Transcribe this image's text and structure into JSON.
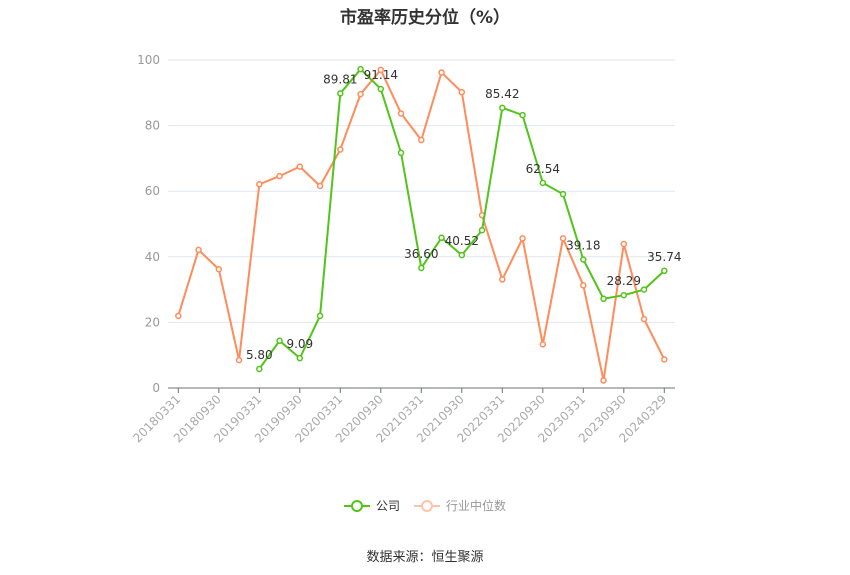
{
  "title": "市盈率历史分位（%）",
  "legend": [
    {
      "label": "公司",
      "color": "#52c41a"
    },
    {
      "label": "行业中位数",
      "color": "#ff8c5a"
    }
  ],
  "source": "数据来源：恒生聚源",
  "chart_data": {
    "type": "line",
    "title": "市盈率历史分位（%）",
    "xlabel": "",
    "ylabel": "",
    "ylim": [
      0,
      100
    ],
    "yticks": [
      0,
      20,
      40,
      60,
      80,
      100
    ],
    "grid": true,
    "legend_position": "bottom",
    "x_tick_labels": [
      "20180331",
      "20180930",
      "20190331",
      "20190930",
      "20200331",
      "20200930",
      "20210331",
      "20210930",
      "20220331",
      "20220930",
      "20230331",
      "20230930",
      "20240329"
    ],
    "categories": [
      "20180331",
      "20180630",
      "20180930",
      "20181231",
      "20190331",
      "20190630",
      "20190930",
      "20191231",
      "20200331",
      "20200630",
      "20200930",
      "20201231",
      "20210331",
      "20210630",
      "20210930",
      "20211231",
      "20220331",
      "20220630",
      "20220930",
      "20221231",
      "20230331",
      "20230630",
      "20230930",
      "20231231",
      "20240329"
    ],
    "series": [
      {
        "name": "公司",
        "color": "#52c41a",
        "values": [
          null,
          null,
          null,
          null,
          5.8,
          14.4,
          9.09,
          22.0,
          89.81,
          97.2,
          91.14,
          71.7,
          36.6,
          45.8,
          40.52,
          48.1,
          85.42,
          83.2,
          62.54,
          59.1,
          39.18,
          27.2,
          28.29,
          30.0,
          35.74
        ],
        "labels": {
          "4": "5.80",
          "6": "9.09",
          "8": "89.81",
          "10": "91.14",
          "12": "36.60",
          "14": "40.52",
          "16": "85.42",
          "18": "62.54",
          "20": "39.18",
          "22": "28.29",
          "24": "35.74"
        }
      },
      {
        "name": "行业中位数",
        "color": "#ff8c5a",
        "values": [
          22.0,
          42.1,
          36.2,
          8.5,
          62.1,
          64.6,
          67.5,
          61.6,
          72.7,
          89.6,
          97.0,
          83.7,
          75.6,
          96.2,
          90.2,
          52.7,
          33.1,
          45.6,
          13.3,
          45.6,
          31.3,
          2.3,
          43.9,
          21.0,
          8.7
        ]
      }
    ]
  }
}
